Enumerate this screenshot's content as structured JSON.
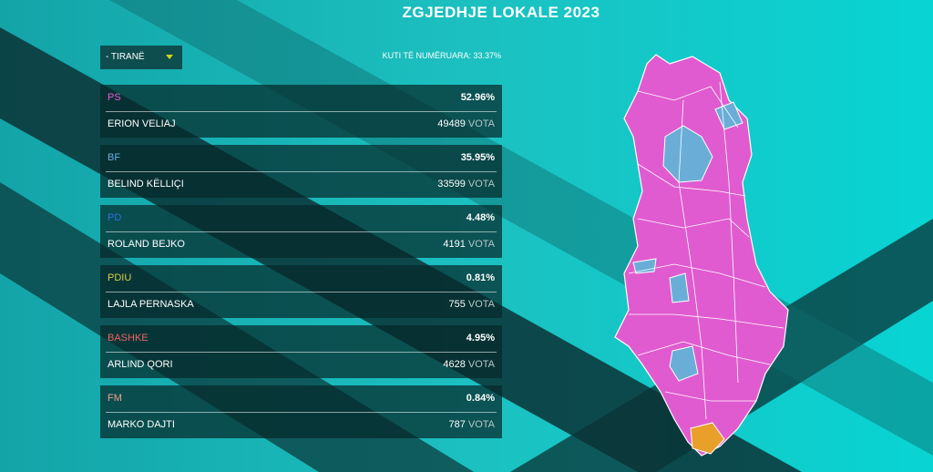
{
  "header": {
    "title": "ZGJEDHJE LOKALE 2023"
  },
  "filter": {
    "selected": "- TIRANË",
    "counted": "KUTI TË NUMËRUARA: 33.37%"
  },
  "vote_unit": "VOTA",
  "candidates": [
    {
      "party": "PS",
      "name": "ERION VELIAJ",
      "percent": "52.96%",
      "votes": "49489"
    },
    {
      "party": "BF",
      "name": "BELIND KËLLIÇI",
      "percent": "35.95%",
      "votes": "33599"
    },
    {
      "party": "PD",
      "name": "ROLAND BEJKO",
      "percent": "4.48%",
      "votes": "4191"
    },
    {
      "party": "PDIU",
      "name": "LAJLA PERNASKA",
      "percent": "0.81%",
      "votes": "755"
    },
    {
      "party": "BASHKE",
      "name": "ARLIND QORI",
      "percent": "4.95%",
      "votes": "4628"
    },
    {
      "party": "FM",
      "name": "MARKO DAJTI",
      "percent": "0.84%",
      "votes": "787"
    }
  ]
}
